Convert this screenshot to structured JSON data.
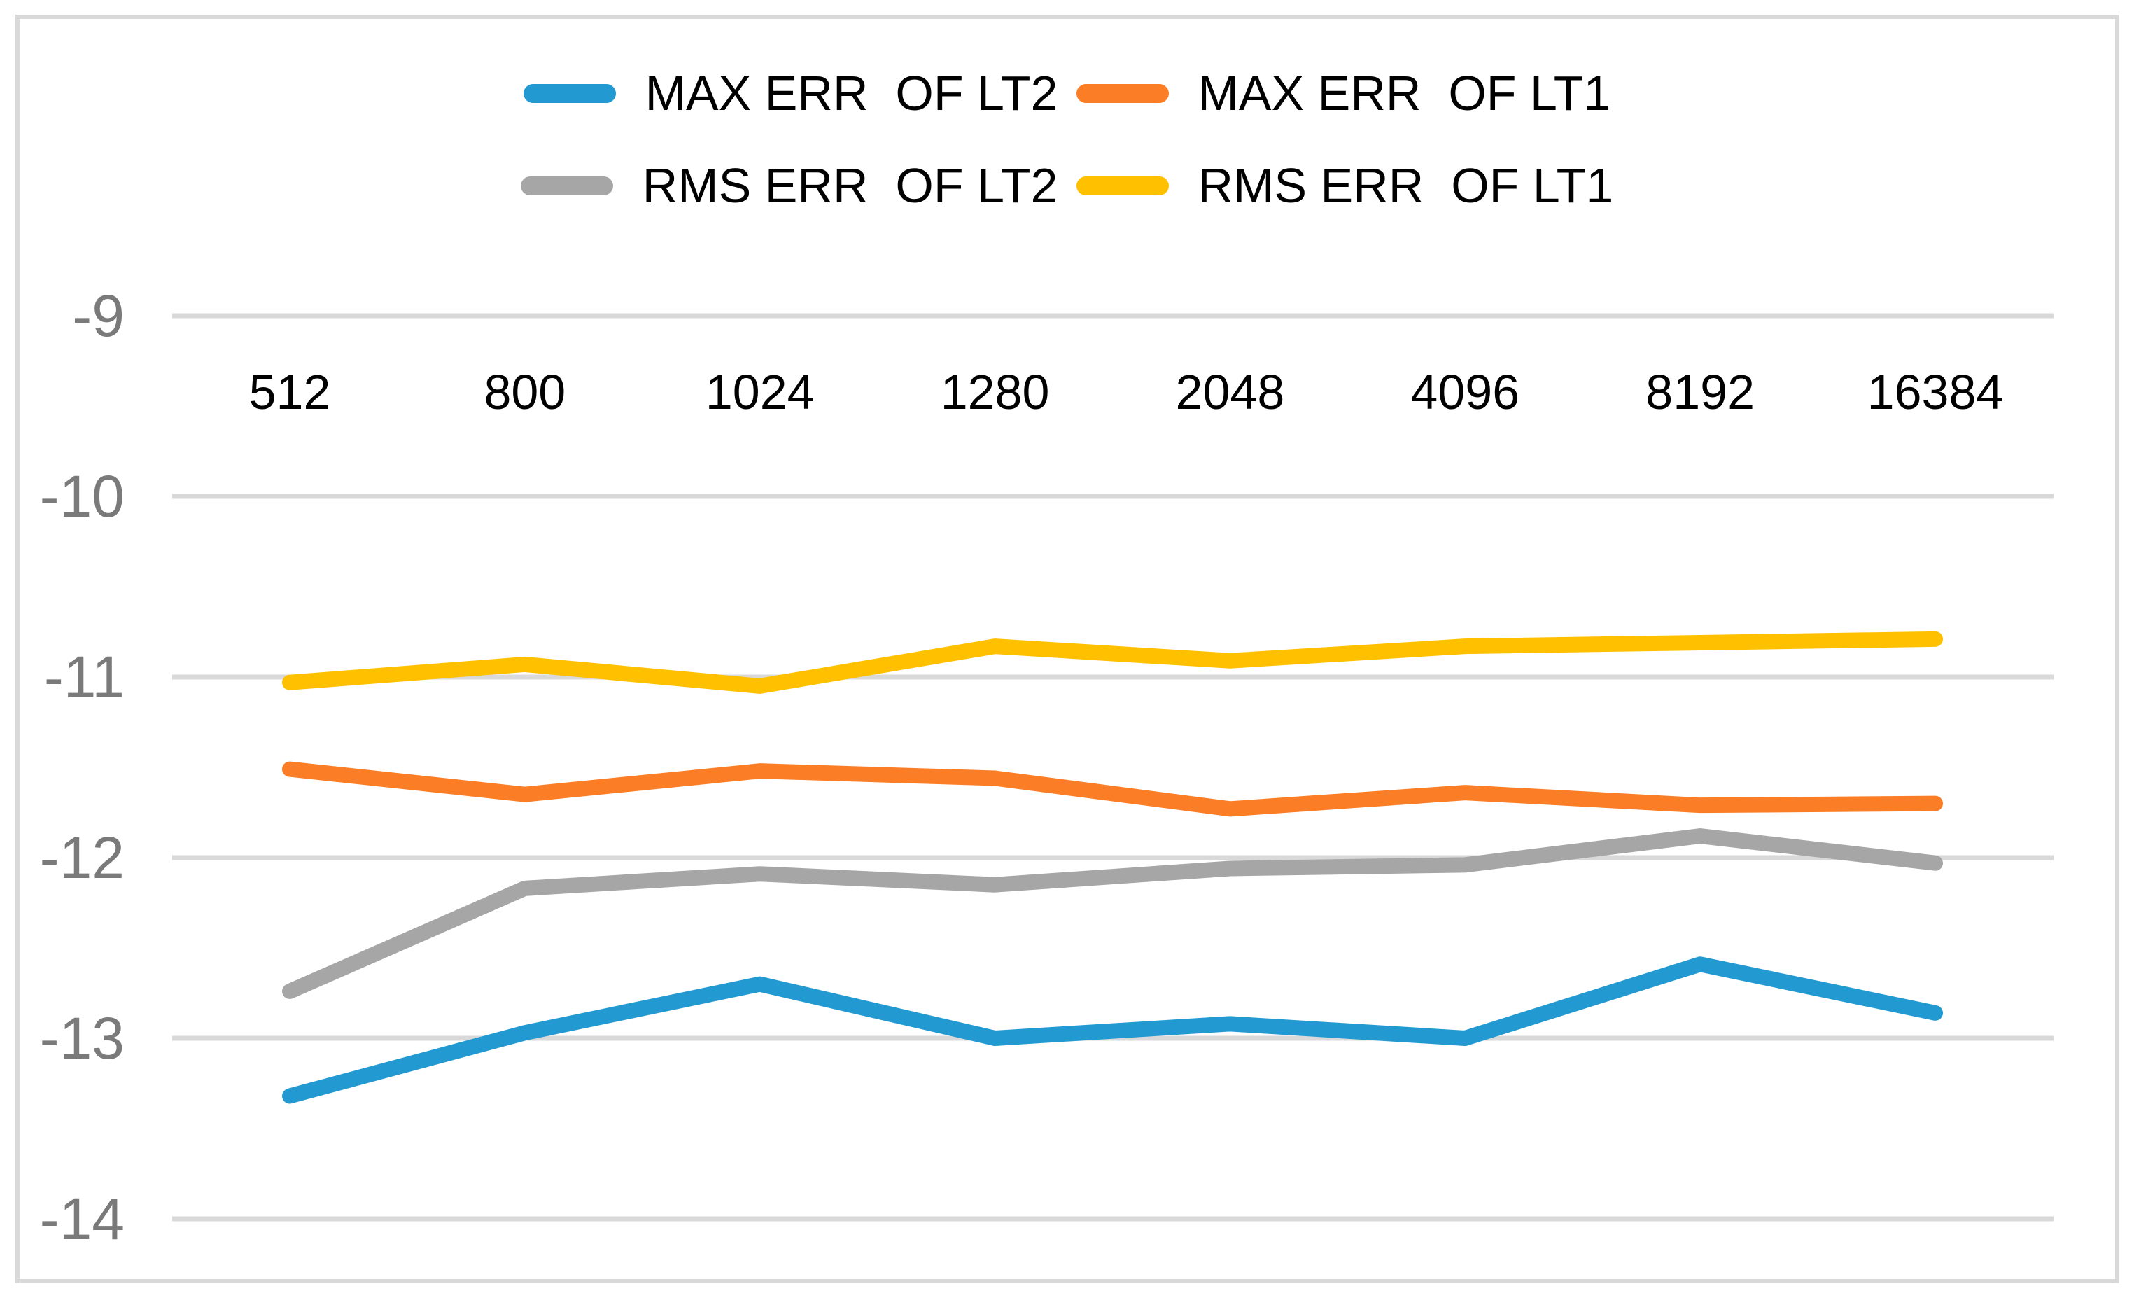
{
  "chart_data": {
    "type": "line",
    "title": "",
    "xlabel": "",
    "ylabel": "",
    "categories": [
      "512",
      "800",
      "1024",
      "1280",
      "2048",
      "4096",
      "8192",
      "16384"
    ],
    "yticks": [
      -9,
      -10,
      -11,
      -12,
      -13,
      -14
    ],
    "ylim": [
      -14.5,
      -9
    ],
    "grid": true,
    "legend_position": "top-center-two-rows",
    "x_tick_row_value_level": -9.42,
    "series": [
      {
        "name": "MAX ERR  OF LT2",
        "color": "#2299D1",
        "values": [
          -13.32,
          -12.97,
          -12.7,
          -13.0,
          -12.92,
          -13.0,
          -12.59,
          -12.86
        ]
      },
      {
        "name": "MAX ERR  OF LT1",
        "color": "#FB7D26",
        "values": [
          -11.51,
          -11.65,
          -11.52,
          -11.56,
          -11.73,
          -11.64,
          -11.71,
          -11.7
        ]
      },
      {
        "name": "RMS ERR  OF LT2",
        "color": "#A6A6A6",
        "values": [
          -12.74,
          -12.17,
          -12.09,
          -12.15,
          -12.06,
          -12.04,
          -11.88,
          -12.03
        ]
      },
      {
        "name": "RMS ERR  OF LT1",
        "color": "#FFC000",
        "values": [
          -11.03,
          -10.93,
          -11.05,
          -10.83,
          -10.91,
          -10.83,
          -10.81,
          -10.79
        ]
      }
    ],
    "colors": {
      "gridline": "#D9D9D9",
      "frame_border": "#D9D9D9",
      "y_tick_text": "#7A7A7A",
      "x_tick_text": "#000000"
    }
  }
}
